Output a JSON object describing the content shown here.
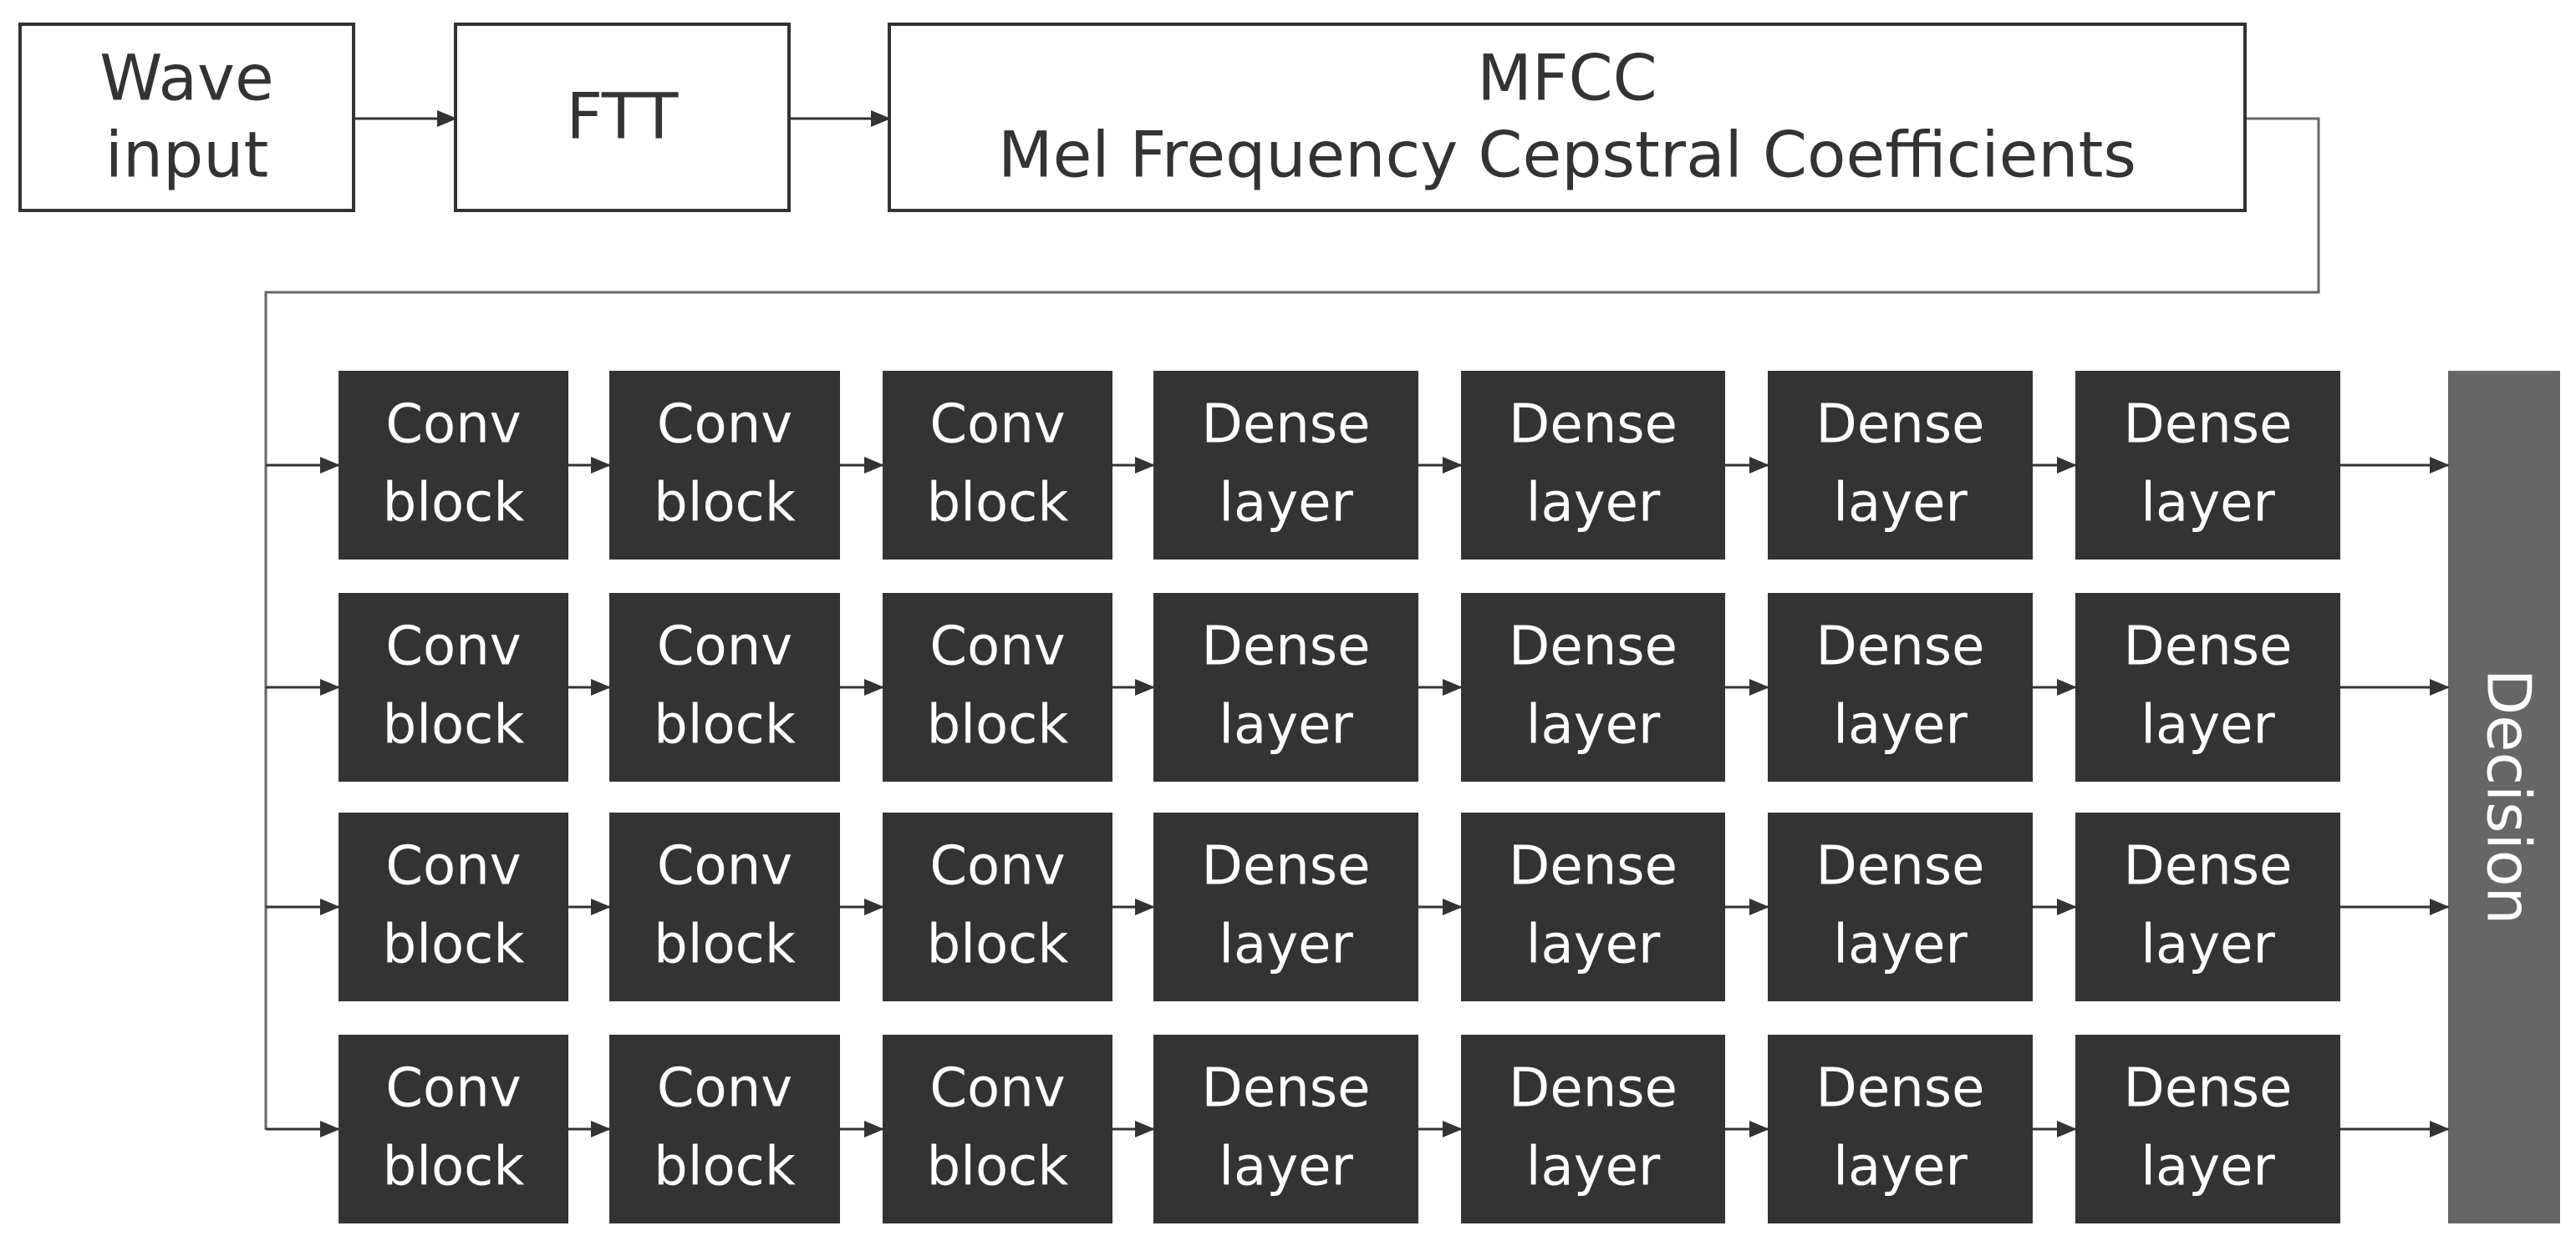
{
  "top": [
    {
      "lines": [
        "Wave",
        "input"
      ]
    },
    {
      "lines": [
        "FTT"
      ]
    },
    {
      "lines": [
        "MFCC",
        "Mel Frequency Cepstral Coefficients"
      ]
    }
  ],
  "rows": [
    [
      {
        "lines": [
          "Conv",
          "block"
        ]
      },
      {
        "lines": [
          "Conv",
          "block"
        ]
      },
      {
        "lines": [
          "Conv",
          "block"
        ]
      },
      {
        "lines": [
          "Dense",
          "layer"
        ]
      },
      {
        "lines": [
          "Dense",
          "layer"
        ]
      },
      {
        "lines": [
          "Dense",
          "layer"
        ]
      },
      {
        "lines": [
          "Dense",
          "layer"
        ]
      }
    ],
    [
      {
        "lines": [
          "Conv",
          "block"
        ]
      },
      {
        "lines": [
          "Conv",
          "block"
        ]
      },
      {
        "lines": [
          "Conv",
          "block"
        ]
      },
      {
        "lines": [
          "Dense",
          "layer"
        ]
      },
      {
        "lines": [
          "Dense",
          "layer"
        ]
      },
      {
        "lines": [
          "Dense",
          "layer"
        ]
      },
      {
        "lines": [
          "Dense",
          "layer"
        ]
      }
    ],
    [
      {
        "lines": [
          "Conv",
          "block"
        ]
      },
      {
        "lines": [
          "Conv",
          "block"
        ]
      },
      {
        "lines": [
          "Conv",
          "block"
        ]
      },
      {
        "lines": [
          "Dense",
          "layer"
        ]
      },
      {
        "lines": [
          "Dense",
          "layer"
        ]
      },
      {
        "lines": [
          "Dense",
          "layer"
        ]
      },
      {
        "lines": [
          "Dense",
          "layer"
        ]
      }
    ],
    [
      {
        "lines": [
          "Conv",
          "block"
        ]
      },
      {
        "lines": [
          "Conv",
          "block"
        ]
      },
      {
        "lines": [
          "Conv",
          "block"
        ]
      },
      {
        "lines": [
          "Dense",
          "layer"
        ]
      },
      {
        "lines": [
          "Dense",
          "layer"
        ]
      },
      {
        "lines": [
          "Dense",
          "layer"
        ]
      },
      {
        "lines": [
          "Dense",
          "layer"
        ]
      }
    ]
  ],
  "decision": "Decision"
}
